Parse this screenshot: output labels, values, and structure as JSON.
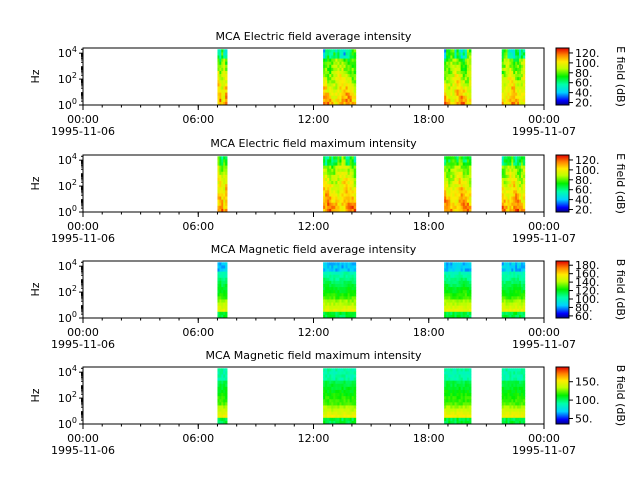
{
  "chart_data": [
    {
      "type": "heatmap",
      "title": "MCA  Electric field average intensity",
      "ylabel": "Hz",
      "colorbar_label": "E field (dB)",
      "colorbar_range": [
        15,
        130
      ],
      "colorbar_ticks": [
        20,
        40,
        60,
        80,
        100,
        120
      ],
      "colorbar_tick_labels": [
        "20.",
        "40.",
        "60.",
        "80.",
        "100.",
        "120."
      ],
      "bands": [
        [
          7.0,
          7.5
        ],
        [
          12.5,
          14.2
        ],
        [
          18.8,
          20.2
        ],
        [
          21.8,
          23.0
        ]
      ],
      "profile": "e-avg"
    },
    {
      "type": "heatmap",
      "title": "MCA  Electric field maximum intensity",
      "ylabel": "Hz",
      "colorbar_label": "E field (dB)",
      "colorbar_range": [
        15,
        130
      ],
      "colorbar_ticks": [
        20,
        40,
        60,
        80,
        100,
        120
      ],
      "colorbar_tick_labels": [
        "20.",
        "40.",
        "60.",
        "80.",
        "100.",
        "120."
      ],
      "bands": [
        [
          7.0,
          7.5
        ],
        [
          12.5,
          14.2
        ],
        [
          18.8,
          20.2
        ],
        [
          21.8,
          23.0
        ]
      ],
      "profile": "e-max"
    },
    {
      "type": "heatmap",
      "title": "MCA  Magnetic field average intensity",
      "ylabel": "Hz",
      "colorbar_label": "B field (dB)",
      "colorbar_range": [
        55,
        190
      ],
      "colorbar_ticks": [
        60,
        80,
        100,
        120,
        140,
        160,
        180
      ],
      "colorbar_tick_labels": [
        "60.",
        "80.",
        "100.",
        "120.",
        "140.",
        "160.",
        "180."
      ],
      "bands": [
        [
          7.0,
          7.5
        ],
        [
          12.5,
          14.2
        ],
        [
          18.8,
          20.2
        ],
        [
          21.8,
          23.0
        ]
      ],
      "profile": "b-avg"
    },
    {
      "type": "heatmap",
      "title": "MCA  Magnetic field maximum intensity",
      "ylabel": "Hz",
      "colorbar_label": "B field (dB)",
      "colorbar_range": [
        35,
        190
      ],
      "colorbar_ticks": [
        50,
        100,
        150
      ],
      "colorbar_tick_labels": [
        "50.",
        "100.",
        "150."
      ],
      "bands": [
        [
          7.0,
          7.5
        ],
        [
          12.5,
          14.2
        ],
        [
          18.8,
          20.2
        ],
        [
          21.8,
          23.0
        ]
      ],
      "profile": "b-max"
    }
  ],
  "axes": {
    "x_range_hours": [
      0,
      24
    ],
    "x_major_ticks": [
      0,
      6,
      12,
      18,
      24
    ],
    "x_tick_labels": [
      "00:00",
      "06:00",
      "12:00",
      "18:00",
      "00:00"
    ],
    "x_minor_step_hours": 1,
    "x_start_date": "1995-11-06",
    "x_end_date": "1995-11-07",
    "y_scale": "log",
    "y_range_log10": [
      0,
      4.4
    ],
    "y_tick_labels": [
      {
        "base": "10",
        "exp": "0"
      },
      {
        "base": "10",
        "exp": "2"
      },
      {
        "base": "10",
        "exp": "4"
      }
    ]
  }
}
